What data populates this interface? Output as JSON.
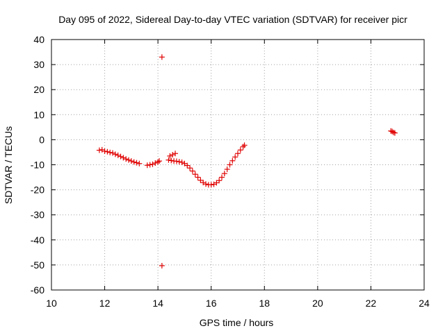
{
  "chart_data": {
    "type": "scatter",
    "title": "Day 095 of 2022, Sidereal Day-to-day VTEC variation (SDTVAR) for receiver picr",
    "xlabel": "GPS time / hours",
    "ylabel": "SDTVAR / TECUs",
    "xlim": [
      10,
      24
    ],
    "ylim": [
      -60,
      40
    ],
    "xticks": [
      10,
      12,
      14,
      16,
      18,
      20,
      22,
      24
    ],
    "yticks": [
      40,
      30,
      20,
      10,
      0,
      -10,
      -20,
      -30,
      -40,
      -50,
      -60
    ],
    "grid": true,
    "marker": "+",
    "series": [
      {
        "name": "SDTVAR",
        "color": "#e00000",
        "points": [
          [
            11.8,
            -4.2
          ],
          [
            11.9,
            -4.0
          ],
          [
            12.0,
            -4.6
          ],
          [
            12.1,
            -4.8
          ],
          [
            12.2,
            -5.1
          ],
          [
            12.3,
            -5.3
          ],
          [
            12.4,
            -5.8
          ],
          [
            12.5,
            -6.2
          ],
          [
            12.6,
            -6.7
          ],
          [
            12.7,
            -7.2
          ],
          [
            12.8,
            -7.7
          ],
          [
            12.9,
            -8.1
          ],
          [
            13.0,
            -8.5
          ],
          [
            13.1,
            -8.9
          ],
          [
            13.2,
            -9.2
          ],
          [
            13.3,
            -9.5
          ],
          [
            13.6,
            -10.2
          ],
          [
            13.7,
            -10.0
          ],
          [
            13.8,
            -9.8
          ],
          [
            13.9,
            -9.3
          ],
          [
            14.0,
            -8.9
          ],
          [
            14.05,
            -8.5
          ],
          [
            14.15,
            33.0
          ],
          [
            14.15,
            -50.3
          ],
          [
            14.4,
            -8.1
          ],
          [
            14.5,
            -8.3
          ],
          [
            14.6,
            -8.5
          ],
          [
            14.7,
            -8.6
          ],
          [
            14.8,
            -8.8
          ],
          [
            14.9,
            -9.0
          ],
          [
            15.0,
            -9.5
          ],
          [
            15.1,
            -10.3
          ],
          [
            15.2,
            -11.3
          ],
          [
            15.3,
            -12.5
          ],
          [
            15.4,
            -13.8
          ],
          [
            15.5,
            -15.0
          ],
          [
            15.6,
            -16.2
          ],
          [
            15.7,
            -17.1
          ],
          [
            15.8,
            -17.7
          ],
          [
            15.9,
            -18.0
          ],
          [
            16.0,
            -18.0
          ],
          [
            16.1,
            -17.8
          ],
          [
            16.2,
            -17.2
          ],
          [
            16.3,
            -16.3
          ],
          [
            16.4,
            -15.0
          ],
          [
            16.5,
            -13.5
          ],
          [
            16.6,
            -11.8
          ],
          [
            16.7,
            -10.0
          ],
          [
            16.8,
            -8.4
          ],
          [
            16.9,
            -6.9
          ],
          [
            17.0,
            -5.5
          ],
          [
            17.1,
            -4.1
          ],
          [
            17.2,
            -2.8
          ],
          [
            17.25,
            -2.2
          ],
          [
            14.45,
            -6.5
          ],
          [
            14.55,
            -6.0
          ],
          [
            14.65,
            -5.5
          ],
          [
            22.75,
            3.5
          ],
          [
            22.8,
            3.3
          ],
          [
            22.85,
            2.9
          ],
          [
            22.9,
            2.7
          ]
        ]
      }
    ]
  }
}
